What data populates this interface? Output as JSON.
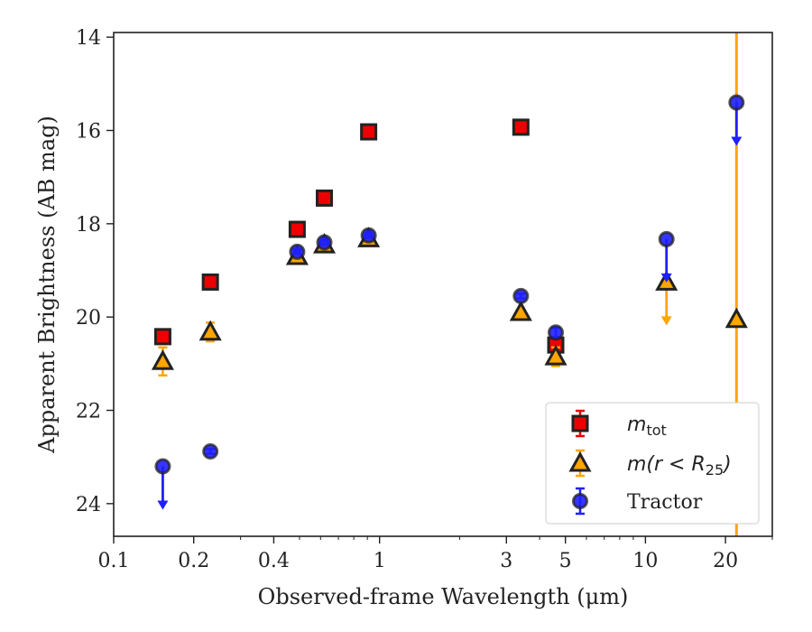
{
  "chart_data": {
    "type": "scatter",
    "xlabel": "Observed-frame Wavelength (μm)",
    "ylabel": "Apparent Brightness (AB mag)",
    "xscale": "log",
    "xlim": [
      0.1,
      30
    ],
    "ylim": [
      24.7,
      13.9
    ],
    "y_inverted": true,
    "x_ticks": [
      0.1,
      0.2,
      0.4,
      1,
      3,
      5,
      10,
      20
    ],
    "x_tick_labels": [
      "0.1",
      "0.2",
      "0.4",
      "1",
      "3",
      "5",
      "10",
      "20"
    ],
    "y_ticks": [
      14,
      16,
      18,
      20,
      22,
      24
    ],
    "y_tick_labels": [
      "14",
      "16",
      "18",
      "20",
      "22",
      "24"
    ],
    "grid": false,
    "legend_position": "lower right",
    "colors": {
      "m_tot": "#ee0000",
      "m_r25": "#ffa500",
      "tractor": "#1f1fff",
      "edge": "#222222"
    },
    "series": [
      {
        "key": "m_tot",
        "name": "m_tot",
        "marker": "square",
        "points": [
          {
            "x": 0.153,
            "y": 20.42,
            "err": 0.08
          },
          {
            "x": 0.231,
            "y": 19.25,
            "err": 0.05
          },
          {
            "x": 0.49,
            "y": 18.12,
            "err": 0.04
          },
          {
            "x": 0.62,
            "y": 17.45,
            "err": 0.04
          },
          {
            "x": 0.91,
            "y": 16.03,
            "err": 0.04
          },
          {
            "x": 3.4,
            "y": 15.93,
            "err": 0.04
          },
          {
            "x": 4.6,
            "y": 20.6,
            "err": 0.12
          }
        ]
      },
      {
        "key": "m_r25",
        "name": "m(r<R25)",
        "marker": "triangle",
        "points": [
          {
            "x": 0.153,
            "y": 20.95,
            "err": 0.3
          },
          {
            "x": 0.231,
            "y": 20.32,
            "err": 0.2
          },
          {
            "x": 0.49,
            "y": 18.7,
            "err": 0.05
          },
          {
            "x": 0.62,
            "y": 18.45,
            "err": 0.05
          },
          {
            "x": 0.91,
            "y": 18.32,
            "err": 0.05
          },
          {
            "x": 3.4,
            "y": 19.9,
            "err": 0.05
          },
          {
            "x": 4.6,
            "y": 20.85,
            "err": 0.2
          },
          {
            "x": 12.0,
            "y": 19.25,
            "upper_limit": true
          },
          {
            "x": 22.0,
            "y": 20.05,
            "err_full_axis": true
          }
        ]
      },
      {
        "key": "tractor",
        "name": "Tractor",
        "marker": "circle",
        "points": [
          {
            "x": 0.153,
            "y": 23.2,
            "upper_limit": true
          },
          {
            "x": 0.231,
            "y": 22.88,
            "err": 0.05
          },
          {
            "x": 0.49,
            "y": 18.6,
            "err": 0.05
          },
          {
            "x": 0.62,
            "y": 18.4,
            "err": 0.05
          },
          {
            "x": 0.91,
            "y": 18.25,
            "err": 0.05
          },
          {
            "x": 3.4,
            "y": 19.55,
            "err": 0.05
          },
          {
            "x": 4.6,
            "y": 20.33,
            "err": 0.1
          },
          {
            "x": 12.0,
            "y": 18.33,
            "upper_limit": true
          },
          {
            "x": 22.0,
            "y": 15.4,
            "upper_limit": true
          }
        ]
      }
    ]
  },
  "legend": {
    "m_tot": {
      "base": "m",
      "sub": "tot"
    },
    "m_r25": {
      "pre": "m(r < R",
      "sub": "25",
      "post": ")"
    },
    "tractor": {
      "label": "Tractor"
    }
  }
}
